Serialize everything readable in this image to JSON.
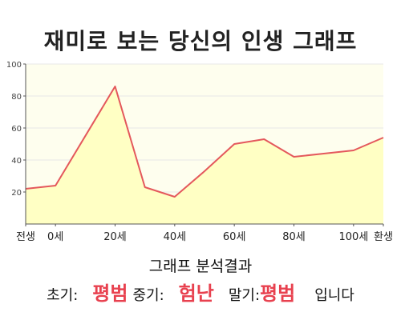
{
  "title": "재미로 보는 당신의 인생 그래프",
  "chart_data": {
    "type": "area",
    "x": [
      -10,
      0,
      20,
      30,
      40,
      50,
      60,
      70,
      80,
      90,
      100,
      110
    ],
    "values": [
      22,
      24,
      86,
      23,
      17,
      33,
      50,
      53,
      42,
      44,
      46,
      54
    ],
    "ylim": [
      0,
      100
    ],
    "xlim": [
      -10,
      110
    ],
    "yticks": [
      20,
      40,
      60,
      80,
      100
    ],
    "xtick_positions": [
      -10,
      0,
      20,
      40,
      60,
      80,
      100,
      110
    ],
    "xtick_labels": [
      "전생",
      "0세",
      "20세",
      "40세",
      "60세",
      "80세",
      "100세",
      "환생"
    ],
    "colors": {
      "line": "#e4585c",
      "fill": "#ffffc4",
      "plot_bg": "#fefeee",
      "grid": "#e8e8e8",
      "axis": "#555555"
    }
  },
  "analysis": {
    "title": "그래프 분석결과",
    "early_label": "초기:",
    "early_value": "평범",
    "mid_label": "중기:",
    "mid_value": "험난",
    "late_label": "말기:",
    "late_value": "평범",
    "ending": "입니다"
  }
}
